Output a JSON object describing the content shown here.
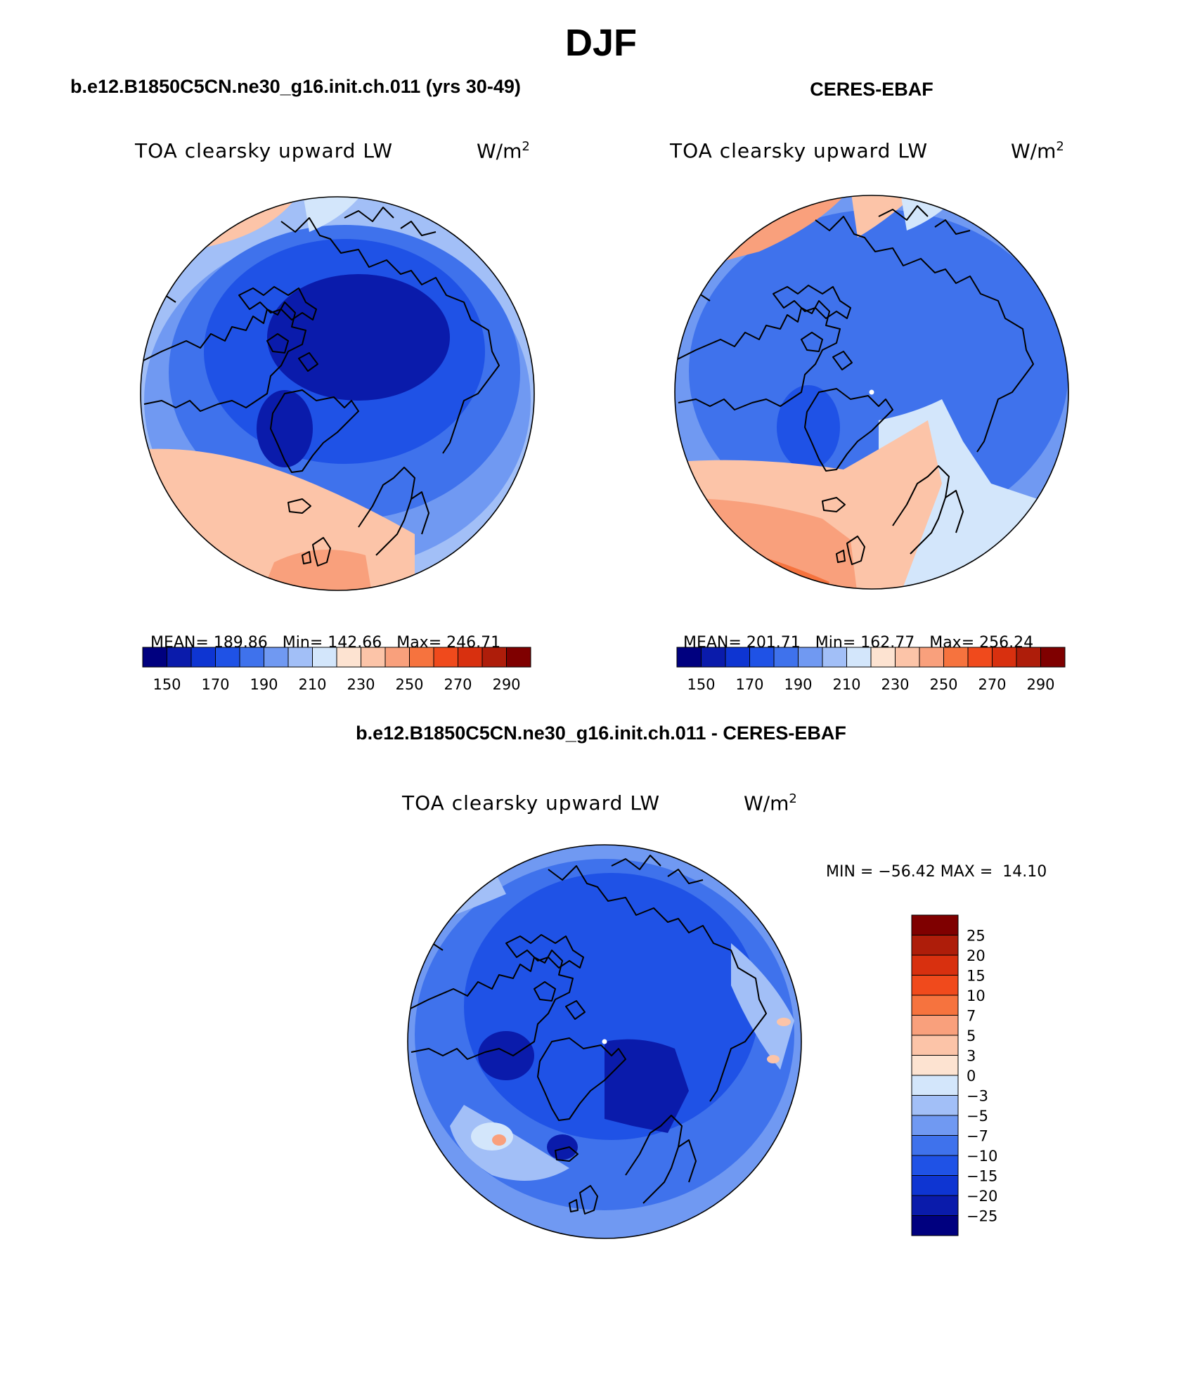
{
  "main_title": "DJF",
  "panels": {
    "model": {
      "case_title": "b.e12.B1850C5CN.ne30_g16.init.ch.011 (yrs 30-49)",
      "variable": "TOA clearsky upward LW",
      "units": "W/m",
      "units_sup": "2",
      "stats": {
        "mean": "MEAN= 189.86",
        "min": "Min= 142.66",
        "max": "Max= 246.71"
      }
    },
    "obs": {
      "case_title": "CERES-EBAF",
      "variable": "TOA clearsky upward LW",
      "units": "W/m",
      "units_sup": "2",
      "stats": {
        "mean": "MEAN= 201.71",
        "min": "Min= 162.77",
        "max": "Max= 256.24"
      }
    },
    "diff": {
      "case_title": "b.e12.B1850C5CN.ne30_g16.init.ch.011 - CERES-EBAF",
      "variable": "TOA clearsky upward LW",
      "units": "W/m",
      "units_sup": "2",
      "stats": "MIN = −56.42 MAX =  14.10"
    }
  },
  "abs_colorbar": {
    "labels": [
      "150",
      "170",
      "190",
      "210",
      "230",
      "250",
      "270",
      "290"
    ],
    "colors": [
      "#00007f",
      "#0a1bab",
      "#0e35d2",
      "#1f52e6",
      "#3f72ec",
      "#7099f2",
      "#a2bff7",
      "#d3e6fb",
      "#fde3d1",
      "#fcc4a8",
      "#f9a07c",
      "#f6733e",
      "#f04a1c",
      "#d8300f",
      "#ae1d0a",
      "#7f0000"
    ]
  },
  "diff_colorbar": {
    "labels": [
      "25",
      "20",
      "15",
      "10",
      "7",
      "5",
      "3",
      "0",
      "−3",
      "−5",
      "−7",
      "−10",
      "−15",
      "−20",
      "−25"
    ],
    "colors": [
      "#7f0000",
      "#ae1d0a",
      "#d8300f",
      "#f04a1c",
      "#f6733e",
      "#f9a07c",
      "#fcc4a8",
      "#fde3d1",
      "#d3e6fb",
      "#a2bff7",
      "#7099f2",
      "#3f72ec",
      "#1f52e6",
      "#0e35d2",
      "#0a1bab",
      "#00007f"
    ]
  },
  "palette": {
    "deep_blue": "#0a1bab",
    "mid_blue": "#1f52e6",
    "blue": "#3f72ec",
    "light_blue": "#7099f2",
    "pale_blue": "#a2bff7",
    "very_pale_blue": "#d3e6fb",
    "peach": "#fcc4a8",
    "salmon": "#f9a07c",
    "orange": "#f6733e"
  }
}
